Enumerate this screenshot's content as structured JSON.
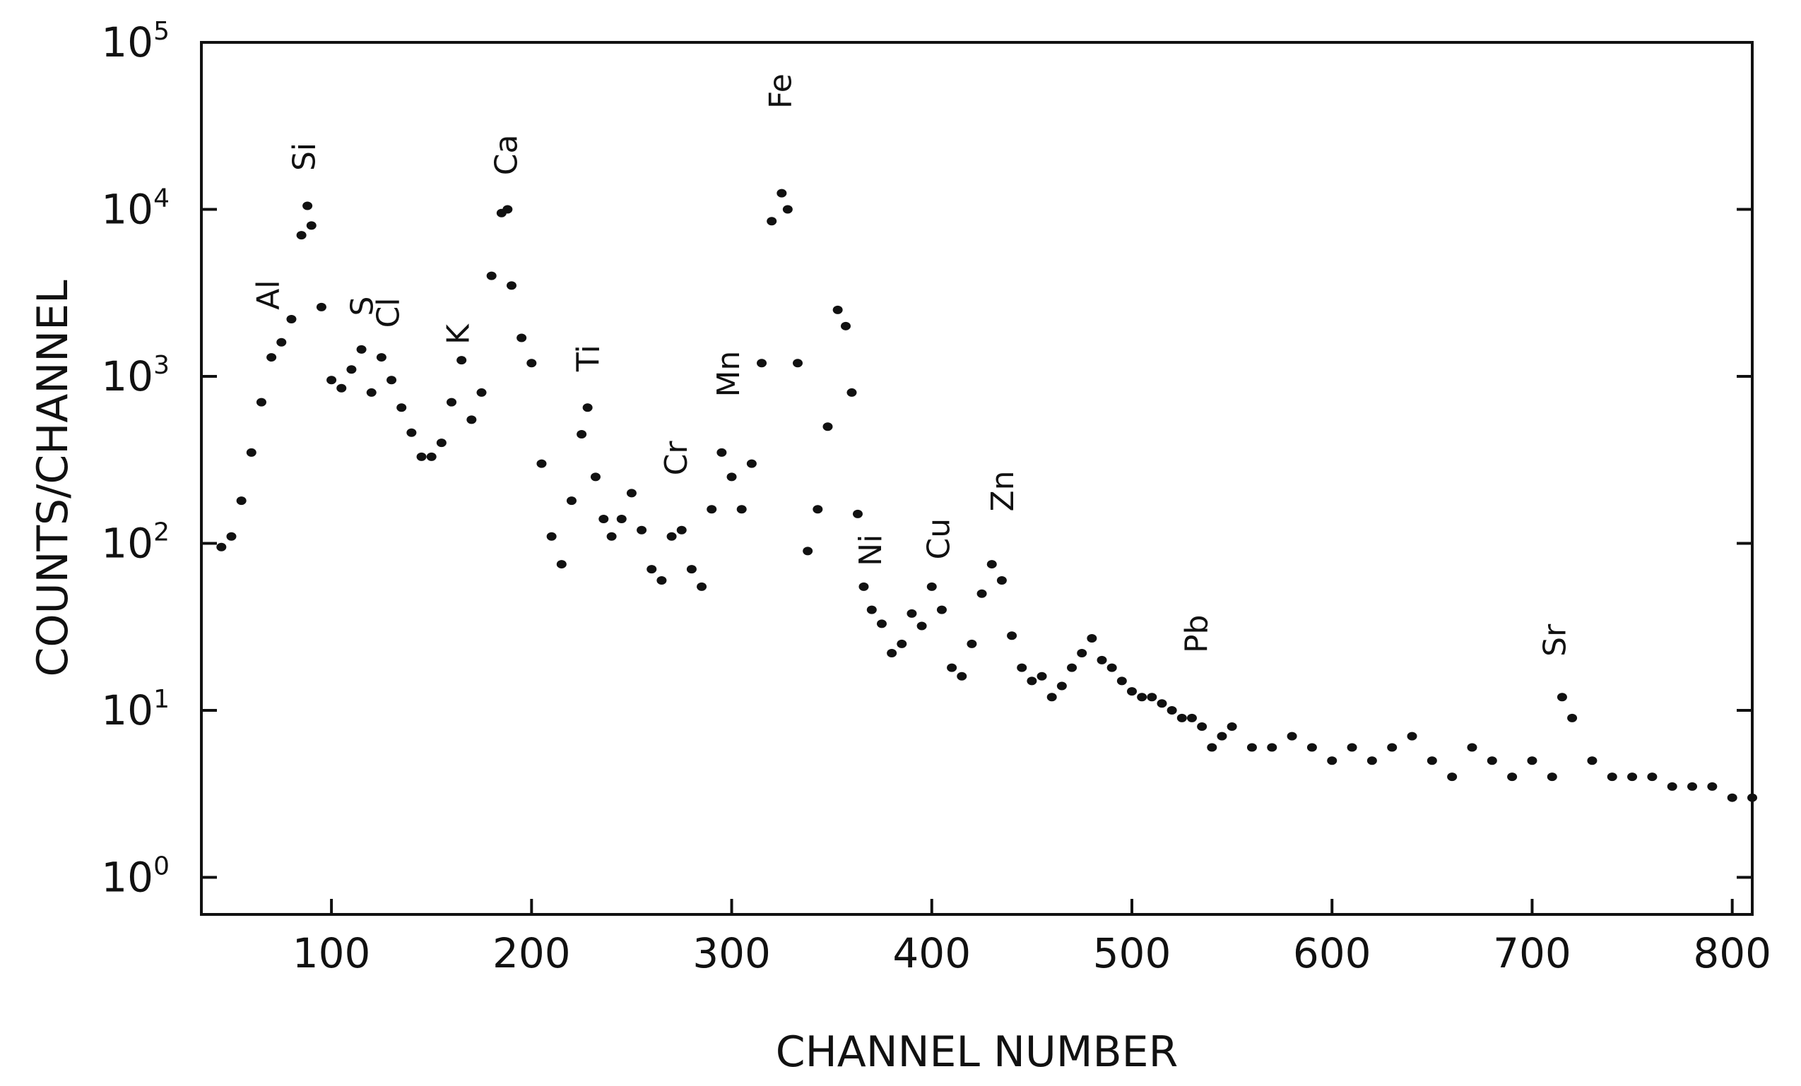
{
  "chart_data": {
    "type": "scatter",
    "xlabel": "CHANNEL NUMBER",
    "ylabel": "COUNTS/CHANNEL",
    "xlim": [
      35,
      810
    ],
    "ylim": [
      0.6,
      100000
    ],
    "y_scale": "log",
    "grid": false,
    "x_ticks": [
      "100",
      "200",
      "300",
      "400",
      "500",
      "600",
      "700",
      "800"
    ],
    "y_ticks": [
      {
        "base": "10",
        "exp": "0"
      },
      {
        "base": "10",
        "exp": "1"
      },
      {
        "base": "10",
        "exp": "2"
      },
      {
        "base": "10",
        "exp": "3"
      },
      {
        "base": "10",
        "exp": "4"
      },
      {
        "base": "10",
        "exp": "5"
      }
    ],
    "peak_labels": [
      {
        "text": "Al",
        "x": 68,
        "y": 2500
      },
      {
        "text": "Si",
        "x": 86,
        "y": 17000
      },
      {
        "text": "S",
        "x": 115,
        "y": 2300
      },
      {
        "text": "Cl",
        "x": 128,
        "y": 1950
      },
      {
        "text": "K",
        "x": 163,
        "y": 1550
      },
      {
        "text": "Ca",
        "x": 187,
        "y": 16000
      },
      {
        "text": "Ti",
        "x": 228,
        "y": 1070
      },
      {
        "text": "Cr",
        "x": 272,
        "y": 255
      },
      {
        "text": "Mn",
        "x": 298,
        "y": 750
      },
      {
        "text": "Fe",
        "x": 324,
        "y": 40000
      },
      {
        "text": "Ni",
        "x": 369,
        "y": 73
      },
      {
        "text": "Cu",
        "x": 403,
        "y": 80
      },
      {
        "text": "Zn",
        "x": 435,
        "y": 155
      },
      {
        "text": "Pb",
        "x": 532,
        "y": 22
      },
      {
        "text": "Sr",
        "x": 711,
        "y": 21
      }
    ],
    "series": [
      {
        "x": [
          45,
          50,
          55,
          60,
          65,
          70,
          75,
          80,
          85,
          88,
          90,
          95,
          100,
          105,
          110,
          115,
          120,
          125,
          130,
          135,
          140,
          145,
          150,
          155,
          160,
          165,
          170,
          175,
          180,
          185,
          188,
          190,
          195,
          200,
          205,
          210,
          215,
          220,
          225,
          228,
          232,
          236,
          240,
          245,
          250,
          255,
          260,
          265,
          270,
          275,
          280,
          285,
          290,
          295,
          300,
          305,
          310,
          315,
          320,
          325,
          328,
          333,
          338,
          343,
          348,
          353,
          357,
          360,
          363,
          366,
          370,
          375,
          380,
          385,
          390,
          395,
          400,
          405,
          410,
          415,
          420,
          425,
          430,
          435,
          440,
          445,
          450,
          455,
          460,
          465,
          470,
          475,
          480,
          485,
          490,
          495,
          500,
          505,
          510,
          515,
          520,
          525,
          530,
          535,
          540,
          545,
          550,
          560,
          570,
          580,
          590,
          600,
          610,
          620,
          630,
          640,
          650,
          660,
          670,
          680,
          690,
          700,
          710,
          715,
          720,
          730,
          740,
          750,
          760,
          770,
          780,
          790,
          800,
          810
        ],
        "y": [
          95,
          110,
          180,
          350,
          700,
          1300,
          1600,
          2200,
          7000,
          10500,
          8000,
          2600,
          950,
          850,
          1100,
          1450,
          800,
          1300,
          950,
          650,
          460,
          330,
          330,
          400,
          700,
          1250,
          550,
          800,
          4000,
          9500,
          10000,
          3500,
          1700,
          1200,
          300,
          110,
          75,
          180,
          450,
          650,
          250,
          140,
          110,
          140,
          200,
          120,
          70,
          60,
          110,
          120,
          70,
          55,
          160,
          350,
          250,
          160,
          300,
          1200,
          8500,
          12500,
          10000,
          1200,
          90,
          160,
          500,
          2500,
          2000,
          800,
          150,
          55,
          40,
          33,
          22,
          25,
          38,
          32,
          55,
          40,
          18,
          16,
          25,
          50,
          75,
          60,
          28,
          18,
          15,
          16,
          12,
          14,
          18,
          22,
          27,
          20,
          18,
          15,
          13,
          12,
          12,
          11,
          10,
          9,
          9,
          8,
          6,
          7,
          8,
          6,
          6,
          7,
          6,
          5,
          6,
          5,
          6,
          7,
          5,
          4,
          6,
          5,
          4,
          5,
          4,
          12,
          9,
          5,
          4,
          4,
          4,
          3.5,
          3.5,
          3.5,
          3,
          3
        ]
      }
    ]
  }
}
